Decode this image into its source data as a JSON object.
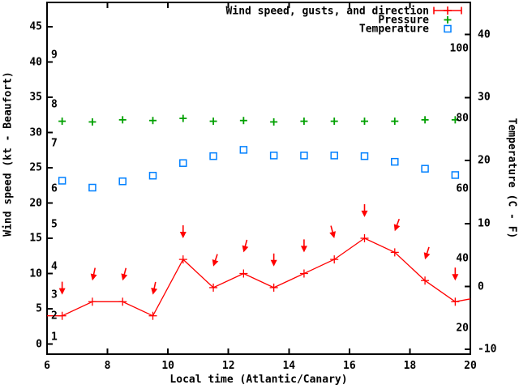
{
  "colors": {
    "wind": "#ff0000",
    "pressure": "#00a000",
    "temperature": "#0080ff",
    "axis": "#000000",
    "background": "#ffffff"
  },
  "legend": {
    "items": [
      {
        "label": "Wind speed, gusts, and direction",
        "series": "wind",
        "marker": "errorbar-plus"
      },
      {
        "label": "Pressure",
        "series": "pressure",
        "marker": "plus"
      },
      {
        "label": "Temperature",
        "series": "temperature",
        "marker": "open-square"
      }
    ]
  },
  "chart_data": {
    "type": "line",
    "title": "",
    "xlabel": "Local time (Atlantic/Canary)",
    "ylabel_left": "Wind speed (kt - Beaufort)",
    "ylabel_right": "Temperature (C - F)",
    "grid": false,
    "legend_position": "top-right-inside",
    "x_range": [
      6,
      20
    ],
    "x_ticks": [
      6,
      8,
      10,
      12,
      14,
      16,
      18,
      20
    ],
    "y_left_ticks_kt": [
      0,
      5,
      10,
      15,
      20,
      25,
      30,
      35,
      40,
      45
    ],
    "y_right_ticks_c": [
      -10,
      0,
      10,
      20,
      30,
      40
    ],
    "beaufort_scale_labels": [
      {
        "label": "1",
        "kt": 1
      },
      {
        "label": "2",
        "kt": 4
      },
      {
        "label": "3",
        "kt": 7
      },
      {
        "label": "4",
        "kt": 11
      },
      {
        "label": "5",
        "kt": 17
      },
      {
        "label": "6",
        "kt": 22
      },
      {
        "label": "7",
        "kt": 28.5
      },
      {
        "label": "8",
        "kt": 34
      },
      {
        "label": "9",
        "kt": 41
      }
    ],
    "fahrenheit_scale_labels": [
      {
        "label": "20",
        "f": 20
      },
      {
        "label": "40",
        "f": 40
      },
      {
        "label": "60",
        "f": 60
      },
      {
        "label": "80",
        "f": 80
      },
      {
        "label": "100",
        "f": 100
      }
    ],
    "times": [
      6.5,
      7.5,
      8.5,
      9.5,
      10.5,
      11.5,
      12.5,
      13.5,
      14.5,
      15.5,
      16.5,
      17.5,
      18.5,
      19.5
    ],
    "series": [
      {
        "name": "Wind speed",
        "unit": "kt",
        "color": "#ff0000",
        "marker": "plus",
        "values": [
          4,
          6,
          6,
          4,
          12,
          8,
          10,
          8,
          10,
          12,
          15,
          13,
          9,
          6
        ],
        "line_edge_start": {
          "x": 6.0,
          "kt": 4.0
        },
        "line_edge_end": {
          "x": 20.0,
          "kt": 6.4
        }
      },
      {
        "name": "Wind gusts and direction",
        "unit": "kt",
        "color": "#ff0000",
        "marker": "arrow-down",
        "values": [
          7,
          9,
          9,
          7,
          15,
          11,
          13,
          11,
          13,
          15,
          18,
          16,
          12,
          9
        ],
        "arrow_tilt_deg": [
          0,
          -12,
          -15,
          -12,
          0,
          -18,
          -15,
          0,
          0,
          15,
          0,
          -20,
          -18,
          0
        ]
      },
      {
        "name": "Pressure",
        "unit": "",
        "color": "#00a000",
        "marker": "plus",
        "axis_note": "no numeric pressure scale visible; plotted level read against left axis",
        "values_on_left_axis_kt": [
          31.6,
          31.5,
          31.8,
          31.7,
          32.0,
          31.6,
          31.7,
          31.5,
          31.6,
          31.6,
          31.6,
          31.6,
          31.8,
          31.8
        ]
      },
      {
        "name": "Temperature",
        "unit": "C",
        "color": "#0080ff",
        "marker": "open-square",
        "values": [
          16.8,
          15.7,
          16.7,
          17.6,
          19.6,
          20.7,
          21.7,
          20.8,
          20.8,
          20.8,
          20.7,
          19.8,
          18.7,
          17.7
        ]
      }
    ]
  }
}
